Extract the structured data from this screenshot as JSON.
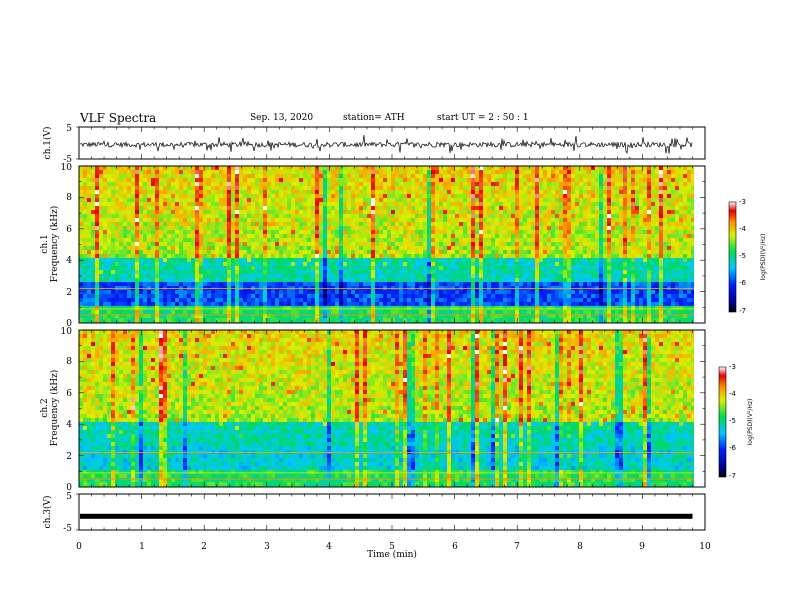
{
  "header": {
    "title": "VLF Spectra",
    "date": "Sep. 13, 2020",
    "station": "station= ATH",
    "start": "start  UT =   2 : 50 : 1"
  },
  "chart_data": [
    {
      "type": "line",
      "panel": "ch1-waveform",
      "ylabel": "ch.1(V)",
      "ylim": [
        -5,
        5
      ],
      "yticks": [
        "5",
        "-5"
      ],
      "xlim": [
        0,
        10
      ],
      "series_color": "#000000",
      "x": [
        0,
        1,
        2,
        3,
        4,
        5,
        6,
        7,
        8,
        9,
        9.8
      ],
      "y": [
        -0.5,
        -0.6,
        -0.4,
        -0.5,
        -0.6,
        -0.5,
        -0.4,
        -0.5,
        -0.6,
        -0.5,
        -0.5
      ]
    },
    {
      "type": "heatmap",
      "panel": "ch1-spectrogram",
      "ylabel": "ch.1",
      "ylabel2": "Frequency  (kHz)",
      "ylim": [
        0,
        10
      ],
      "yticks": [
        "0",
        "2",
        "4",
        "6",
        "8",
        "10"
      ],
      "xlim": [
        0,
        10
      ],
      "colorbar": {
        "label": "log(PSD)(V²/Hz)",
        "range": [
          -7,
          -3
        ],
        "ticks": [
          "-3",
          "-4",
          "-5",
          "-6",
          "-7"
        ]
      }
    },
    {
      "type": "heatmap",
      "panel": "ch2-spectrogram",
      "ylabel": "ch.2",
      "ylabel2": "Frequency  (kHz)",
      "ylim": [
        0,
        10
      ],
      "yticks": [
        "0",
        "2",
        "4",
        "6",
        "8",
        "10"
      ],
      "xlim": [
        0,
        10
      ],
      "colorbar": {
        "label": "log(PSD)(V²/Hz)",
        "range": [
          -7,
          -3
        ],
        "ticks": [
          "-3",
          "-4",
          "-5",
          "-6",
          "-7"
        ]
      }
    },
    {
      "type": "line",
      "panel": "ch3-waveform",
      "ylabel": "ch.3(V)",
      "ylim": [
        -5,
        5
      ],
      "yticks": [
        "5",
        "-5"
      ],
      "xlim": [
        0,
        10
      ],
      "series_color": "#000000",
      "x": [
        0,
        9.8
      ],
      "y": [
        -1.2,
        -1.2
      ]
    }
  ],
  "xaxis": {
    "label": "Time  (min)",
    "ticks": [
      "0",
      "1",
      "2",
      "3",
      "4",
      "5",
      "6",
      "7",
      "8",
      "9",
      "10"
    ]
  },
  "colors": {
    "frame": "#000000",
    "background": "#ffffff"
  }
}
